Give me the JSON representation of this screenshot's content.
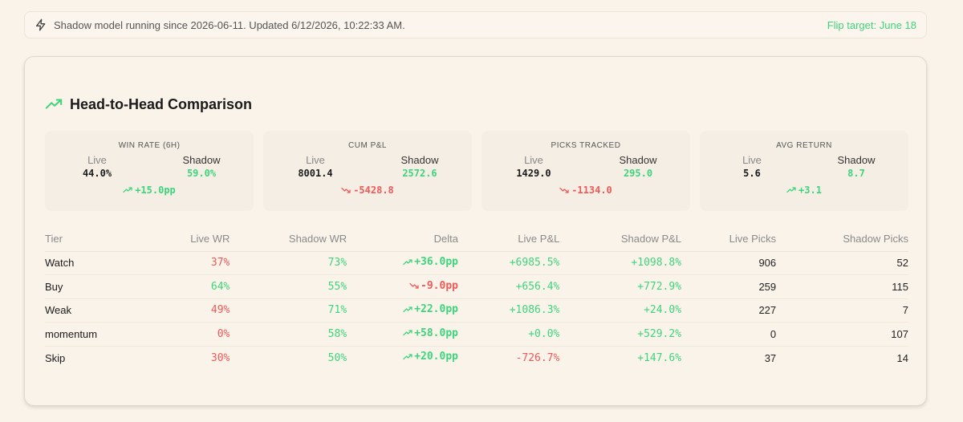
{
  "status_bar": {
    "message": "Shadow model running since 2026-06-11. Updated 6/12/2026, 10:22:33 AM.",
    "flip_target": "Flip target: June 18",
    "icon": "bolt-icon"
  },
  "card": {
    "title": "Head-to-Head Comparison",
    "icon": "trending-up-icon"
  },
  "stats": [
    {
      "label": "WIN RATE (6H)",
      "live_label": "Live",
      "shadow_label": "Shadow",
      "live": "44.0%",
      "shadow": "59.0%",
      "delta": "+15.0pp",
      "direction": "up"
    },
    {
      "label": "CUM P&L",
      "live_label": "Live",
      "shadow_label": "Shadow",
      "live": "8001.4",
      "shadow": "2572.6",
      "delta": "-5428.8",
      "direction": "down"
    },
    {
      "label": "PICKS TRACKED",
      "live_label": "Live",
      "shadow_label": "Shadow",
      "live": "1429.0",
      "shadow": "295.0",
      "delta": "-1134.0",
      "direction": "down"
    },
    {
      "label": "AVG RETURN",
      "live_label": "Live",
      "shadow_label": "Shadow",
      "live": "5.6",
      "shadow": "8.7",
      "delta": "+3.1",
      "direction": "up"
    }
  ],
  "table": {
    "headers": [
      "Tier",
      "Live WR",
      "Shadow WR",
      "Delta",
      "Live P&L",
      "Shadow P&L",
      "Live Picks",
      "Shadow Picks"
    ],
    "rows": [
      {
        "tier": "Watch",
        "live_wr": "37%",
        "shadow_wr": "73%",
        "delta": "+36.0pp",
        "delta_dir": "up",
        "live_pnl": "+6985.5%",
        "shadow_pnl": "+1098.8%",
        "live_picks": "906",
        "shadow_picks": "52"
      },
      {
        "tier": "Buy",
        "live_wr": "64%",
        "shadow_wr": "55%",
        "delta": "-9.0pp",
        "delta_dir": "down",
        "live_pnl": "+656.4%",
        "shadow_pnl": "+772.9%",
        "live_picks": "259",
        "shadow_picks": "115"
      },
      {
        "tier": "Weak",
        "live_wr": "49%",
        "shadow_wr": "71%",
        "delta": "+22.0pp",
        "delta_dir": "up",
        "live_pnl": "+1086.3%",
        "shadow_pnl": "+24.0%",
        "live_picks": "227",
        "shadow_picks": "7"
      },
      {
        "tier": "momentum",
        "live_wr": "0%",
        "shadow_wr": "58%",
        "delta": "+58.0pp",
        "delta_dir": "up",
        "live_pnl": "+0.0%",
        "shadow_pnl": "+529.2%",
        "live_picks": "0",
        "shadow_picks": "107"
      },
      {
        "tier": "Skip",
        "live_wr": "30%",
        "shadow_wr": "50%",
        "delta": "+20.0pp",
        "delta_dir": "up",
        "live_pnl": "-726.7%",
        "shadow_pnl": "+147.6%",
        "live_picks": "37",
        "shadow_picks": "14"
      }
    ]
  },
  "colors": {
    "background": "#f9f3ea",
    "positive": "#3dd57c",
    "negative": "#ee5a5a",
    "text": "#1b1b1b"
  }
}
